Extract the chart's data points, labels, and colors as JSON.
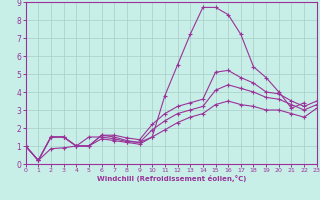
{
  "bg_color": "#c8eee8",
  "grid_color": "#a8cec8",
  "line_color": "#993399",
  "xlabel": "Windchill (Refroidissement éolien,°C)",
  "xlim": [
    0,
    23
  ],
  "ylim": [
    0,
    9
  ],
  "xticks": [
    0,
    1,
    2,
    3,
    4,
    5,
    6,
    7,
    8,
    9,
    10,
    11,
    12,
    13,
    14,
    15,
    16,
    17,
    18,
    19,
    20,
    21,
    22,
    23
  ],
  "yticks": [
    0,
    1,
    2,
    3,
    4,
    5,
    6,
    7,
    8,
    9
  ],
  "line1": [
    1.0,
    0.2,
    0.85,
    0.9,
    1.0,
    1.5,
    1.5,
    1.4,
    1.25,
    1.2,
    1.5,
    3.8,
    5.5,
    7.2,
    8.7,
    8.7,
    8.3,
    7.2,
    5.4,
    4.8,
    4.0,
    3.1,
    3.4,
    null
  ],
  "line2": [
    1.0,
    0.2,
    1.5,
    1.5,
    1.0,
    1.0,
    1.6,
    1.6,
    1.45,
    1.35,
    2.2,
    2.8,
    3.2,
    3.4,
    3.6,
    5.1,
    5.2,
    4.8,
    4.5,
    4.0,
    3.9,
    3.5,
    3.2,
    3.5
  ],
  "line3": [
    1.0,
    0.2,
    1.5,
    1.5,
    1.0,
    1.0,
    1.6,
    1.5,
    1.3,
    1.2,
    1.9,
    2.4,
    2.8,
    3.0,
    3.2,
    4.1,
    4.4,
    4.2,
    4.0,
    3.7,
    3.6,
    3.3,
    3.0,
    3.3
  ],
  "line4": [
    1.0,
    0.2,
    1.5,
    1.5,
    1.0,
    1.0,
    1.4,
    1.3,
    1.2,
    1.1,
    1.5,
    1.9,
    2.3,
    2.6,
    2.8,
    3.3,
    3.5,
    3.3,
    3.2,
    3.0,
    3.0,
    2.8,
    2.6,
    3.1
  ]
}
